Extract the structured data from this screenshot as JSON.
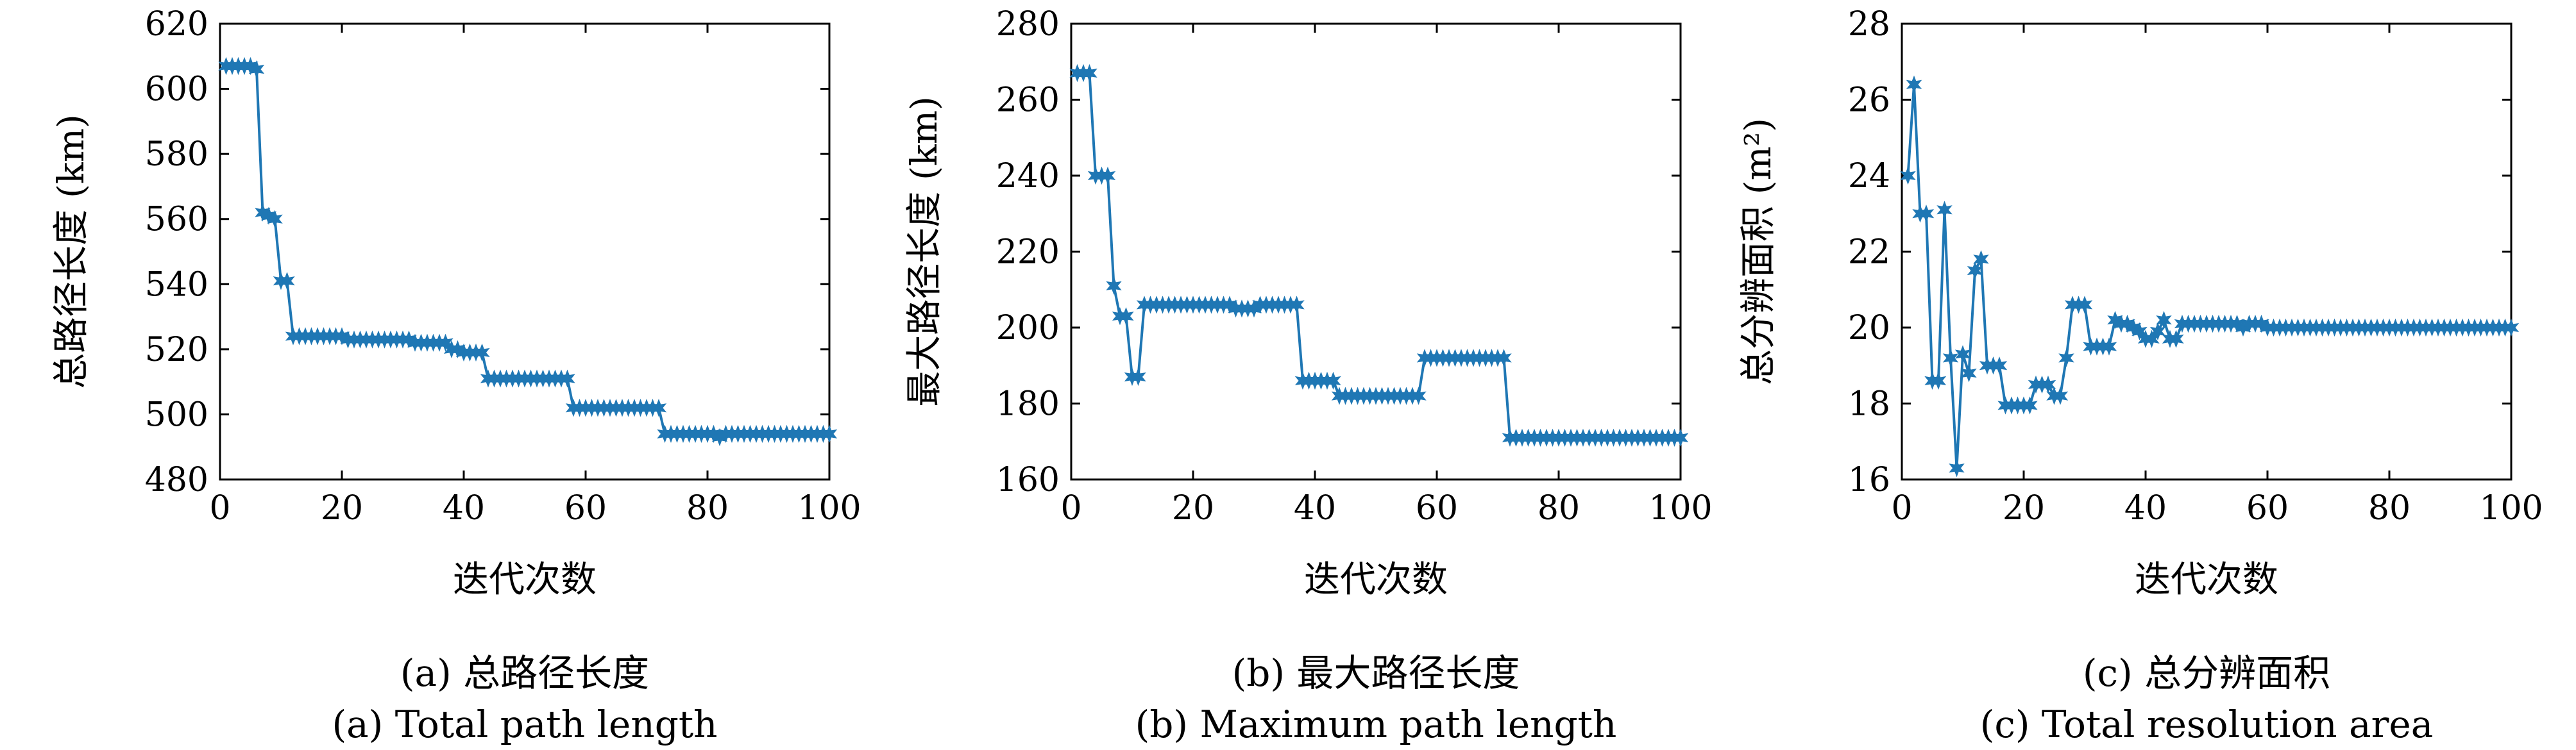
{
  "chart_data": [
    {
      "type": "line",
      "title": "",
      "xlabel": "迭代次数",
      "ylabel": "总路径长度 (km)",
      "xlim": [
        0,
        100
      ],
      "ylim": [
        480,
        620
      ],
      "xticks": [
        0,
        20,
        40,
        60,
        80,
        100
      ],
      "yticks": [
        480,
        500,
        520,
        540,
        560,
        580,
        600,
        620
      ],
      "caption_cn": "(a) 总路径长度",
      "caption_en": "(a) Total path length",
      "color": "#1f77b4",
      "grid": false,
      "legend": "none",
      "x": [
        1,
        2,
        3,
        4,
        5,
        6,
        7,
        8,
        9,
        10,
        11,
        12,
        13,
        14,
        15,
        16,
        17,
        18,
        19,
        20,
        21,
        22,
        23,
        24,
        25,
        26,
        27,
        28,
        29,
        30,
        31,
        32,
        33,
        34,
        35,
        36,
        37,
        38,
        39,
        40,
        41,
        42,
        43,
        44,
        45,
        46,
        47,
        48,
        49,
        50,
        51,
        52,
        53,
        54,
        55,
        56,
        57,
        58,
        59,
        60,
        61,
        62,
        63,
        64,
        65,
        66,
        67,
        68,
        69,
        70,
        71,
        72,
        73,
        74,
        75,
        76,
        77,
        78,
        79,
        80,
        81,
        82,
        83,
        84,
        85,
        86,
        87,
        88,
        89,
        90,
        91,
        92,
        93,
        94,
        95,
        96,
        97,
        98,
        99,
        100
      ],
      "y": [
        607,
        607,
        607,
        607,
        607,
        606,
        562,
        561,
        560,
        541,
        541,
        524,
        524,
        524,
        524,
        524,
        524,
        524,
        524,
        524,
        523,
        523,
        523,
        523,
        523,
        523,
        523,
        523,
        523,
        523,
        523,
        522,
        522,
        522,
        522,
        522,
        522,
        520,
        520,
        519,
        519,
        519,
        519,
        511,
        511,
        511,
        511,
        511,
        511,
        511,
        511,
        511,
        511,
        511,
        511,
        511,
        511,
        502,
        502,
        502,
        502,
        502,
        502,
        502,
        502,
        502,
        502,
        502,
        502,
        502,
        502,
        502,
        494,
        494,
        494,
        494,
        494,
        494,
        494,
        494,
        494,
        493,
        494,
        494,
        494,
        494,
        494,
        494,
        494,
        494,
        494,
        494,
        494,
        494,
        494,
        494,
        494,
        494,
        494,
        494
      ]
    },
    {
      "type": "line",
      "title": "",
      "xlabel": "迭代次数",
      "ylabel": "最大路径长度 (km)",
      "xlim": [
        0,
        100
      ],
      "ylim": [
        160,
        280
      ],
      "xticks": [
        0,
        20,
        40,
        60,
        80,
        100
      ],
      "yticks": [
        160,
        180,
        200,
        220,
        240,
        260,
        280
      ],
      "caption_cn": "(b) 最大路径长度",
      "caption_en": "(b) Maximum path length",
      "color": "#1f77b4",
      "grid": false,
      "legend": "none",
      "x": [
        1,
        2,
        3,
        4,
        5,
        6,
        7,
        8,
        9,
        10,
        11,
        12,
        13,
        14,
        15,
        16,
        17,
        18,
        19,
        20,
        21,
        22,
        23,
        24,
        25,
        26,
        27,
        28,
        29,
        30,
        31,
        32,
        33,
        34,
        35,
        36,
        37,
        38,
        39,
        40,
        41,
        42,
        43,
        44,
        45,
        46,
        47,
        48,
        49,
        50,
        51,
        52,
        53,
        54,
        55,
        56,
        57,
        58,
        59,
        60,
        61,
        62,
        63,
        64,
        65,
        66,
        67,
        68,
        69,
        70,
        71,
        72,
        73,
        74,
        75,
        76,
        77,
        78,
        79,
        80,
        81,
        82,
        83,
        84,
        85,
        86,
        87,
        88,
        89,
        90,
        91,
        92,
        93,
        94,
        95,
        96,
        97,
        98,
        99,
        100
      ],
      "y": [
        267,
        267,
        267,
        240,
        240,
        240,
        211,
        203,
        203,
        187,
        187,
        206,
        206,
        206,
        206,
        206,
        206,
        206,
        206,
        206,
        206,
        206,
        206,
        206,
        206,
        206,
        205,
        205,
        205,
        205,
        206,
        206,
        206,
        206,
        206,
        206,
        206,
        186,
        186,
        186,
        186,
        186,
        186,
        182,
        182,
        182,
        182,
        182,
        182,
        182,
        182,
        182,
        182,
        182,
        182,
        182,
        182,
        192,
        192,
        192,
        192,
        192,
        192,
        192,
        192,
        192,
        192,
        192,
        192,
        192,
        192,
        171,
        171,
        171,
        171,
        171,
        171,
        171,
        171,
        171,
        171,
        171,
        171,
        171,
        171,
        171,
        171,
        171,
        171,
        171,
        171,
        171,
        171,
        171,
        171,
        171,
        171,
        171,
        171,
        171
      ]
    },
    {
      "type": "line",
      "title": "",
      "xlabel": "迭代次数",
      "ylabel": "总分辨面积 (m²)",
      "xlim": [
        0,
        100
      ],
      "ylim": [
        16,
        28
      ],
      "xticks": [
        0,
        20,
        40,
        60,
        80,
        100
      ],
      "yticks": [
        16,
        18,
        20,
        22,
        24,
        26,
        28
      ],
      "caption_cn": "(c) 总分辨面积",
      "caption_en": "(c) Total resolution area",
      "color": "#1f77b4",
      "grid": false,
      "legend": "none",
      "x": [
        1,
        2,
        3,
        4,
        5,
        6,
        7,
        8,
        9,
        10,
        11,
        12,
        13,
        14,
        15,
        16,
        17,
        18,
        19,
        20,
        21,
        22,
        23,
        24,
        25,
        26,
        27,
        28,
        29,
        30,
        31,
        32,
        33,
        34,
        35,
        36,
        37,
        38,
        39,
        40,
        41,
        42,
        43,
        44,
        45,
        46,
        47,
        48,
        49,
        50,
        51,
        52,
        53,
        54,
        55,
        56,
        57,
        58,
        59,
        60,
        61,
        62,
        63,
        64,
        65,
        66,
        67,
        68,
        69,
        70,
        71,
        72,
        73,
        74,
        75,
        76,
        77,
        78,
        79,
        80,
        81,
        82,
        83,
        84,
        85,
        86,
        87,
        88,
        89,
        90,
        91,
        92,
        93,
        94,
        95,
        96,
        97,
        98,
        99,
        100
      ],
      "y": [
        24.0,
        26.4,
        23.0,
        23.0,
        18.6,
        18.6,
        23.1,
        19.2,
        16.3,
        19.3,
        18.8,
        21.5,
        21.8,
        19.0,
        19.0,
        19.0,
        17.95,
        17.95,
        17.95,
        17.95,
        17.95,
        18.5,
        18.5,
        18.5,
        18.2,
        18.2,
        19.2,
        20.6,
        20.6,
        20.6,
        19.5,
        19.5,
        19.5,
        19.5,
        20.2,
        20.1,
        20.1,
        20.0,
        19.9,
        19.7,
        19.7,
        19.9,
        20.2,
        19.7,
        19.7,
        20.1,
        20.1,
        20.1,
        20.1,
        20.1,
        20.1,
        20.1,
        20.1,
        20.1,
        20.1,
        20.0,
        20.1,
        20.1,
        20.1,
        20.0,
        20.0,
        20.0,
        20.0,
        20.0,
        20.0,
        20.0,
        20.0,
        20.0,
        20.0,
        20.0,
        20.0,
        20.0,
        20.0,
        20.0,
        20.0,
        20.0,
        20.0,
        20.0,
        20.0,
        20.0,
        20.0,
        20.0,
        20.0,
        20.0,
        20.0,
        20.0,
        20.0,
        20.0,
        20.0,
        20.0,
        20.0,
        20.0,
        20.0,
        20.0,
        20.0,
        20.0,
        20.0,
        20.0,
        20.0,
        20.0
      ]
    }
  ]
}
